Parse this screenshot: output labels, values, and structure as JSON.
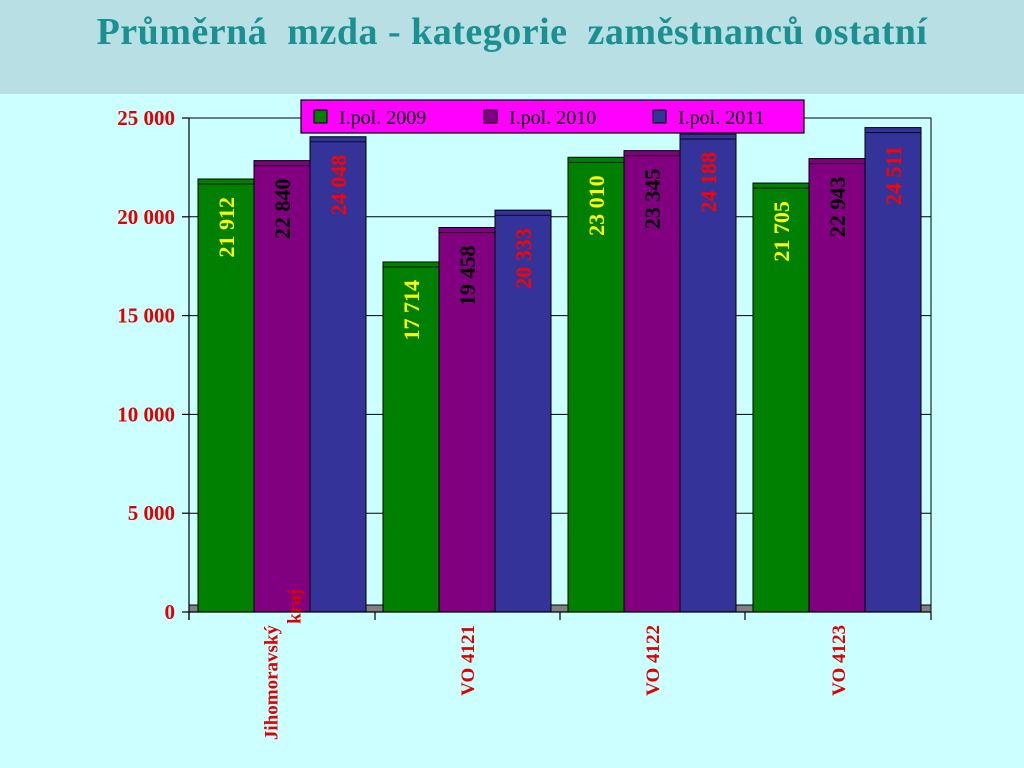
{
  "slide": {
    "title": "Průměrná  mzda - kategorie  zaměstnanců ostatní"
  },
  "chart_data": {
    "type": "bar",
    "categories": [
      "Jihomoravský kraj",
      "VO  4121",
      "VO  4122",
      "VO  4123"
    ],
    "series": [
      {
        "name": "I.pol. 2009",
        "color": "#008000",
        "label_color": "#ffff00",
        "values": [
          21912,
          17714,
          23010,
          21705
        ],
        "labels": [
          "21 912",
          "17 714",
          "23 010",
          "21 705"
        ]
      },
      {
        "name": "I.pol. 2010",
        "color": "#800080",
        "label_color": "#000000",
        "values": [
          22840,
          19458,
          23345,
          22943
        ],
        "labels": [
          "22 840",
          "19 458",
          "23 345",
          "22 943"
        ]
      },
      {
        "name": "I.pol. 2011",
        "color": "#333399",
        "label_color": "#ff0000",
        "values": [
          24048,
          20333,
          24188,
          24511
        ],
        "labels": [
          "24 048",
          "20 333",
          "24 188",
          "24 511"
        ]
      }
    ],
    "ylim": [
      0,
      25000
    ],
    "yticks": [
      0,
      5000,
      10000,
      15000,
      20000,
      25000
    ],
    "ytick_labels": [
      "0",
      "5 000",
      "10 000",
      "15 000",
      "20 000",
      "25 000"
    ],
    "grid": true,
    "legend_position": "top",
    "legend_background": "#ff00ff",
    "plot_background": "#ccffff",
    "axis_label_color": "#e00000"
  }
}
